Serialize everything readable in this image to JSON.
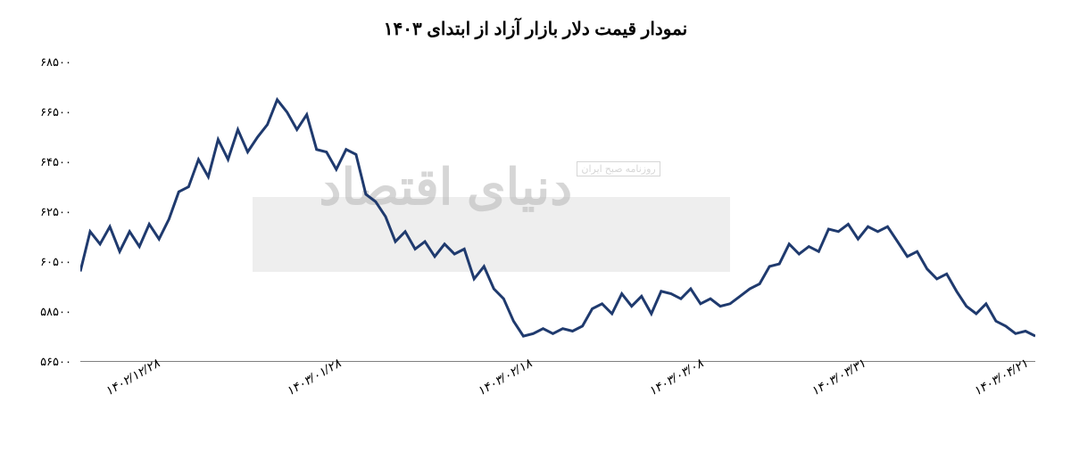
{
  "chart": {
    "type": "line",
    "title": "نمودار قیمت دلار بازار آزاد از ابتدای ۱۴۰۳",
    "title_fontsize": 20,
    "title_color": "#000000",
    "background_color": "#ffffff",
    "line_color": "#1f3a6e",
    "line_width": 3,
    "ylim": [
      56500,
      68500
    ],
    "ytick_step": 2000,
    "yticks": [
      "۵۶۵۰۰",
      "۵۸۵۰۰",
      "۶۰۵۰۰",
      "۶۲۵۰۰",
      "۶۴۵۰۰",
      "۶۶۵۰۰",
      "۶۸۵۰۰"
    ],
    "ytick_values": [
      56500,
      58500,
      60500,
      62500,
      64500,
      66500,
      68500
    ],
    "ytick_fontsize": 13,
    "xticks": [
      "۱۴۰۲/۱۲/۲۸",
      "۱۴۰۳/۰۱/۲۸",
      "۱۴۰۳/۰۲/۱۸",
      "۱۴۰۳/۰۳/۰۸",
      "۱۴۰۳/۰۳/۳۱",
      "۱۴۰۳/۰۴/۲۱"
    ],
    "xtick_positions": [
      0.05,
      0.24,
      0.44,
      0.62,
      0.79,
      0.96
    ],
    "xtick_fontsize": 14,
    "xtick_rotation": -30,
    "axis_color": "#808080",
    "data": [
      60100,
      61700,
      61200,
      61900,
      60900,
      61700,
      61100,
      62000,
      61400,
      62200,
      63300,
      63500,
      64600,
      63900,
      65400,
      64600,
      65800,
      64900,
      65500,
      66000,
      67000,
      66500,
      65800,
      66400,
      65000,
      64900,
      64200,
      65000,
      64800,
      63200,
      62900,
      62300,
      61300,
      61700,
      61000,
      61300,
      60700,
      61200,
      60800,
      61000,
      59800,
      60300,
      59400,
      59000,
      58100,
      57500,
      57600,
      57800,
      57600,
      57800,
      57700,
      57900,
      58600,
      58800,
      58400,
      59200,
      58700,
      59100,
      58400,
      59300,
      59200,
      59000,
      59400,
      58800,
      59000,
      58700,
      58800,
      59100,
      59400,
      59600,
      60300,
      60400,
      61200,
      60800,
      61100,
      60900,
      61800,
      61700,
      62000,
      61400,
      61900,
      61700,
      61900,
      61300,
      60700,
      60900,
      60200,
      59800,
      60000,
      59300,
      58700,
      58400,
      58800,
      58100,
      57900,
      57600,
      57700,
      57500
    ],
    "watermark": {
      "box_color": "#dddddd",
      "box_opacity": 0.5,
      "text": "دنیای اقتصاد",
      "text_color": "#bbbbbb",
      "text_fontsize": 56,
      "subtext": "روزنامه صبح ایران",
      "subtext_fontsize": 11
    }
  }
}
